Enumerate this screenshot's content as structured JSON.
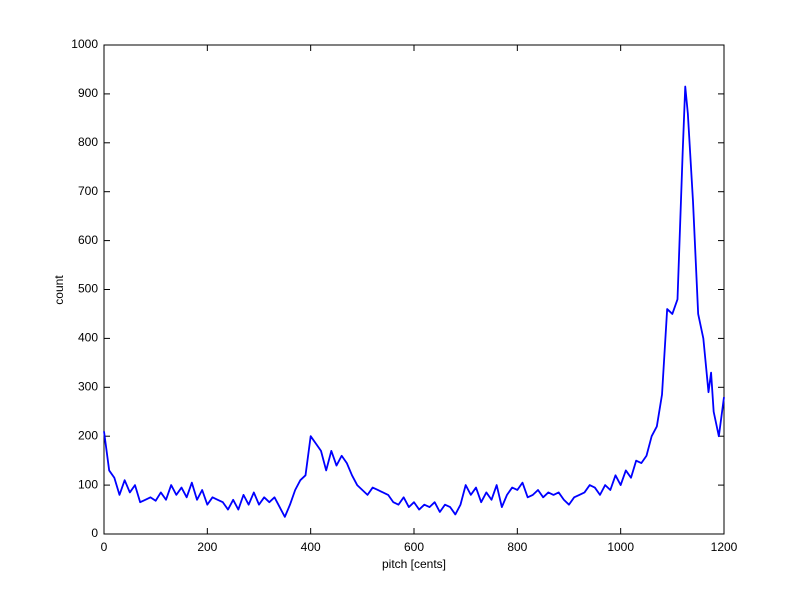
{
  "chart_data": {
    "type": "line",
    "xlabel": "pitch [cents]",
    "ylabel": "count",
    "x": [
      0,
      10,
      20,
      30,
      40,
      50,
      60,
      70,
      80,
      90,
      100,
      110,
      120,
      130,
      140,
      150,
      160,
      170,
      180,
      190,
      200,
      210,
      220,
      230,
      240,
      250,
      260,
      270,
      280,
      290,
      300,
      310,
      320,
      330,
      340,
      350,
      360,
      370,
      380,
      390,
      400,
      410,
      420,
      430,
      440,
      450,
      460,
      470,
      480,
      490,
      500,
      510,
      520,
      530,
      540,
      550,
      560,
      570,
      580,
      590,
      600,
      610,
      620,
      630,
      640,
      650,
      660,
      670,
      680,
      690,
      700,
      710,
      720,
      730,
      740,
      750,
      760,
      770,
      780,
      790,
      800,
      810,
      820,
      830,
      840,
      850,
      860,
      870,
      880,
      890,
      900,
      910,
      920,
      930,
      940,
      950,
      960,
      970,
      980,
      990,
      1000,
      1010,
      1020,
      1030,
      1040,
      1050,
      1060,
      1070,
      1080,
      1090,
      1100,
      1110,
      1120,
      1125,
      1130,
      1140,
      1150,
      1160,
      1170,
      1175,
      1180,
      1190,
      1200
    ],
    "series": [
      {
        "name": "count",
        "color": "#0000ff",
        "values": [
          210,
          130,
          115,
          80,
          110,
          85,
          100,
          65,
          70,
          75,
          68,
          85,
          70,
          100,
          80,
          95,
          75,
          105,
          70,
          90,
          60,
          75,
          70,
          65,
          50,
          70,
          50,
          80,
          60,
          85,
          60,
          75,
          65,
          75,
          55,
          35,
          60,
          90,
          110,
          120,
          200,
          185,
          170,
          130,
          170,
          140,
          160,
          145,
          120,
          100,
          90,
          80,
          95,
          90,
          85,
          80,
          65,
          60,
          75,
          55,
          65,
          50,
          60,
          55,
          65,
          45,
          60,
          55,
          40,
          60,
          100,
          80,
          95,
          65,
          85,
          70,
          100,
          55,
          80,
          95,
          90,
          105,
          75,
          80,
          90,
          75,
          85,
          80,
          85,
          70,
          60,
          75,
          80,
          85,
          100,
          95,
          80,
          100,
          90,
          120,
          100,
          130,
          115,
          150,
          145,
          160,
          200,
          220,
          285,
          460,
          450,
          480,
          780,
          915,
          860,
          680,
          450,
          400,
          290,
          330,
          250,
          200,
          280
        ]
      }
    ],
    "xlim": [
      0,
      1200
    ],
    "xticks": [
      0,
      200,
      400,
      600,
      800,
      1000,
      1200
    ],
    "ylim": [
      0,
      1000
    ],
    "yticks": [
      0,
      100,
      200,
      300,
      400,
      500,
      600,
      700,
      800,
      900,
      1000
    ],
    "grid": false
  }
}
